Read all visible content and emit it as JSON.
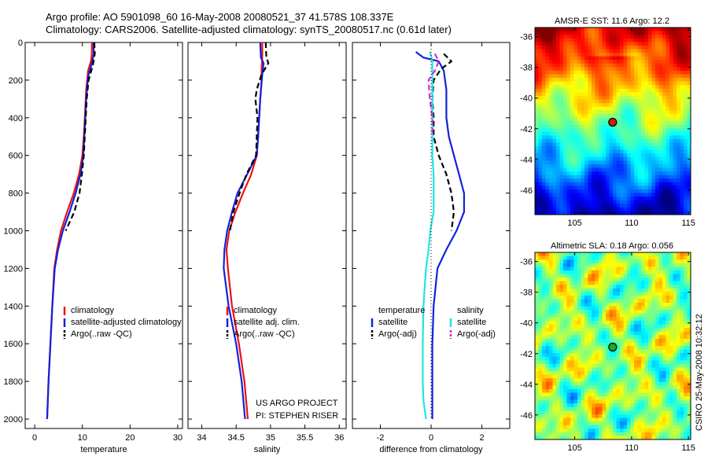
{
  "figure": {
    "title_line1": "Argo profile: AO 5901098_60 16-May-2008 20080521_37 41.578S 108.337E",
    "title_line2": "Climatology: CARS2006. Satellite-adjusted climatology: synTS_20080517.nc (0.61d later)",
    "credit": "CSIRO 25-May-2008 10:32:12",
    "project_line1": "US ARGO PROJECT",
    "project_line2": "PI: STEPHEN RISER"
  },
  "colors": {
    "climatology": "#ee1111",
    "satellite": "#1122dd",
    "argo": "#000000",
    "diff_temp_sat": "#1122dd",
    "diff_temp_argo": "#000000",
    "diff_sal_sat": "#22e4e4",
    "diff_sal_argo": "#dd22dd",
    "marker_sst": "#cc2200",
    "marker_sla": "#22aa22"
  },
  "chart_data": [
    {
      "type": "line",
      "id": "temperature",
      "xlabel": "temperature",
      "ylabel": "",
      "xlim": [
        -2,
        31
      ],
      "ylim": [
        2050,
        0
      ],
      "xticks": [
        0,
        10,
        20,
        30
      ],
      "yticks": [
        0,
        200,
        400,
        600,
        800,
        1000,
        1200,
        1400,
        1600,
        1800,
        2000
      ],
      "legend_placement": "lower-right",
      "legend": [
        "climatology",
        "satellite-adjusted climatology",
        "Argo(..raw -QC)"
      ],
      "series": [
        {
          "name": "climatology",
          "style": "solid",
          "color_key": "climatology",
          "points": [
            [
              12.0,
              0
            ],
            [
              12.0,
              60
            ],
            [
              11.8,
              100
            ],
            [
              11.2,
              150
            ],
            [
              10.8,
              250
            ],
            [
              10.5,
              400
            ],
            [
              10.3,
              500
            ],
            [
              10.0,
              600
            ],
            [
              9.3,
              700
            ],
            [
              8.2,
              800
            ],
            [
              6.8,
              900
            ],
            [
              5.5,
              1000
            ],
            [
              4.7,
              1100
            ],
            [
              4.1,
              1200
            ],
            [
              3.7,
              1400
            ],
            [
              3.3,
              1600
            ],
            [
              2.9,
              1800
            ],
            [
              2.6,
              2000
            ]
          ]
        },
        {
          "name": "satellite-adjusted climatology",
          "style": "solid",
          "color_key": "satellite",
          "points": [
            [
              12.3,
              0
            ],
            [
              12.4,
              60
            ],
            [
              12.0,
              110
            ],
            [
              11.2,
              180
            ],
            [
              10.8,
              300
            ],
            [
              10.5,
              450
            ],
            [
              10.2,
              600
            ],
            [
              9.6,
              700
            ],
            [
              8.6,
              800
            ],
            [
              7.3,
              900
            ],
            [
              5.9,
              1000
            ],
            [
              4.9,
              1100
            ],
            [
              4.2,
              1200
            ],
            [
              3.7,
              1400
            ],
            [
              3.3,
              1600
            ],
            [
              2.9,
              1800
            ],
            [
              2.6,
              2000
            ]
          ]
        },
        {
          "name": "Argo(..raw -QC)",
          "style": "dashed",
          "color_key": "argo",
          "points": [
            [
              12.5,
              0
            ],
            [
              12.6,
              60
            ],
            [
              12.2,
              120
            ],
            [
              11.3,
              200
            ],
            [
              10.9,
              300
            ],
            [
              10.6,
              450
            ],
            [
              10.3,
              600
            ],
            [
              9.9,
              700
            ],
            [
              9.4,
              800
            ],
            [
              8.3,
              900
            ],
            [
              6.5,
              1000
            ]
          ]
        }
      ]
    },
    {
      "type": "line",
      "id": "salinity",
      "xlabel": "salinity",
      "ylabel": "",
      "xlim": [
        33.8,
        36.1
      ],
      "ylim": [
        2050,
        0
      ],
      "xticks": [
        34,
        34.5,
        35,
        35.5,
        36
      ],
      "yticks": [
        0,
        200,
        400,
        600,
        800,
        1000,
        1200,
        1400,
        1600,
        1800,
        2000
      ],
      "legend_placement": "lower-right",
      "legend": [
        "climatology",
        "satellite adj. clim.",
        "Argo(..raw -QC)"
      ],
      "series": [
        {
          "name": "climatology",
          "style": "solid",
          "color_key": "climatology",
          "points": [
            [
              34.88,
              0
            ],
            [
              34.88,
              70
            ],
            [
              34.87,
              150
            ],
            [
              34.87,
              200
            ],
            [
              34.85,
              300
            ],
            [
              34.82,
              500
            ],
            [
              34.8,
              600
            ],
            [
              34.72,
              700
            ],
            [
              34.6,
              800
            ],
            [
              34.49,
              900
            ],
            [
              34.4,
              1000
            ],
            [
              34.36,
              1100
            ],
            [
              34.38,
              1200
            ],
            [
              34.44,
              1400
            ],
            [
              34.54,
              1600
            ],
            [
              34.62,
              1800
            ],
            [
              34.67,
              2000
            ]
          ]
        },
        {
          "name": "satellite adj. clim.",
          "style": "solid",
          "color_key": "satellite",
          "points": [
            [
              34.85,
              0
            ],
            [
              34.86,
              80
            ],
            [
              34.9,
              110
            ],
            [
              34.88,
              170
            ],
            [
              34.85,
              300
            ],
            [
              34.82,
              500
            ],
            [
              34.8,
              600
            ],
            [
              34.66,
              700
            ],
            [
              34.52,
              800
            ],
            [
              34.44,
              900
            ],
            [
              34.37,
              1000
            ],
            [
              34.33,
              1100
            ],
            [
              34.32,
              1200
            ],
            [
              34.39,
              1400
            ],
            [
              34.5,
              1600
            ],
            [
              34.58,
              1800
            ],
            [
              34.63,
              2000
            ]
          ]
        },
        {
          "name": "Argo(..raw -QC)",
          "style": "dashed",
          "color_key": "argo",
          "points": [
            [
              34.93,
              0
            ],
            [
              34.94,
              80
            ],
            [
              34.97,
              110
            ],
            [
              34.87,
              170
            ],
            [
              34.8,
              250
            ],
            [
              34.78,
              300
            ],
            [
              34.81,
              400
            ],
            [
              34.79,
              600
            ],
            [
              34.65,
              700
            ],
            [
              34.55,
              800
            ],
            [
              34.46,
              900
            ],
            [
              34.41,
              1000
            ]
          ]
        }
      ]
    },
    {
      "type": "line",
      "id": "difference",
      "xlabel": "difference from climatology",
      "ylabel": "",
      "xlim": [
        -3.1,
        3.1
      ],
      "ylim": [
        2050,
        0
      ],
      "xticks": [
        -2,
        0,
        2
      ],
      "yticks": [
        0,
        200,
        400,
        600,
        800,
        1000,
        1200,
        1400,
        1600,
        1800,
        2000
      ],
      "legend_placement": "lower-center",
      "legend_groups": [
        {
          "title": "temperature",
          "items": [
            "satellite",
            "Argo(-adj)"
          ]
        },
        {
          "title": "salinity",
          "items": [
            "satellite",
            "Argo(-adj)"
          ]
        }
      ],
      "series": [
        {
          "name": "temperature satellite",
          "style": "solid",
          "color_key": "diff_temp_sat",
          "points": [
            [
              -0.6,
              50
            ],
            [
              -0.3,
              80
            ],
            [
              0.3,
              100
            ],
            [
              0.5,
              150
            ],
            [
              0.6,
              250
            ],
            [
              0.6,
              400
            ],
            [
              0.7,
              500
            ],
            [
              0.9,
              600
            ],
            [
              1.1,
              700
            ],
            [
              1.3,
              800
            ],
            [
              1.3,
              900
            ],
            [
              1.0,
              1000
            ],
            [
              0.6,
              1100
            ],
            [
              0.25,
              1200
            ],
            [
              0.1,
              1400
            ],
            [
              0.05,
              1600
            ],
            [
              0.05,
              1800
            ],
            [
              0.05,
              2000
            ]
          ]
        },
        {
          "name": "temperature Argo(-adj)",
          "style": "dashed",
          "color_key": "diff_temp_argo",
          "points": [
            [
              0.5,
              60
            ],
            [
              0.8,
              100
            ],
            [
              0.4,
              140
            ],
            [
              0.1,
              200
            ],
            [
              0.05,
              300
            ],
            [
              0.1,
              400
            ],
            [
              0.1,
              500
            ],
            [
              0.3,
              600
            ],
            [
              0.6,
              700
            ],
            [
              0.8,
              800
            ],
            [
              0.9,
              900
            ],
            [
              0.8,
              1000
            ]
          ]
        },
        {
          "name": "salinity satellite",
          "style": "solid",
          "color_key": "diff_sal_sat",
          "points": [
            [
              -0.05,
              50
            ],
            [
              0.02,
              80
            ],
            [
              0.05,
              110
            ],
            [
              0.05,
              200
            ],
            [
              0.05,
              400
            ],
            [
              0.05,
              600
            ],
            [
              0.1,
              700
            ],
            [
              0.1,
              900
            ],
            [
              -0.03,
              1000
            ],
            [
              -0.1,
              1100
            ],
            [
              -0.2,
              1200
            ],
            [
              -0.3,
              1400
            ],
            [
              -0.33,
              1600
            ],
            [
              -0.33,
              1800
            ],
            [
              -0.3,
              1900
            ],
            [
              -0.2,
              2000
            ]
          ]
        },
        {
          "name": "salinity Argo(-adj)",
          "style": "dashed",
          "color_key": "diff_sal_argo",
          "points": [
            [
              0.15,
              60
            ],
            [
              0.3,
              100
            ],
            [
              0.15,
              150
            ],
            [
              -0.1,
              200
            ],
            [
              -0.05,
              300
            ],
            [
              0.05,
              400
            ],
            [
              0.05,
              500
            ]
          ]
        },
        {
          "name": "zero line",
          "style": "dotted",
          "color_key": "argo",
          "points": [
            [
              0,
              0
            ],
            [
              0,
              2000
            ]
          ]
        }
      ]
    },
    {
      "type": "heatmap",
      "id": "sst-map",
      "title": "AMSR-E SST: 11.6 Argo: 12.2",
      "xlim": [
        101.5,
        115.2
      ],
      "ylim": [
        -47.6,
        -35.4
      ],
      "xticks": [
        105,
        110,
        115
      ],
      "yticks": [
        -36,
        -38,
        -40,
        -42,
        -44,
        -46
      ],
      "marker": {
        "lon": 108.337,
        "lat": -41.578
      }
    },
    {
      "type": "heatmap",
      "id": "sla-map",
      "title": "Altimetric SLA: 0.18 Argo: 0.056",
      "xlim": [
        101.5,
        115.2
      ],
      "ylim": [
        -47.6,
        -35.4
      ],
      "xticks": [
        105,
        110,
        115
      ],
      "yticks": [
        -36,
        -38,
        -40,
        -42,
        -44,
        -46
      ],
      "marker": {
        "lon": 108.337,
        "lat": -41.578
      }
    }
  ]
}
